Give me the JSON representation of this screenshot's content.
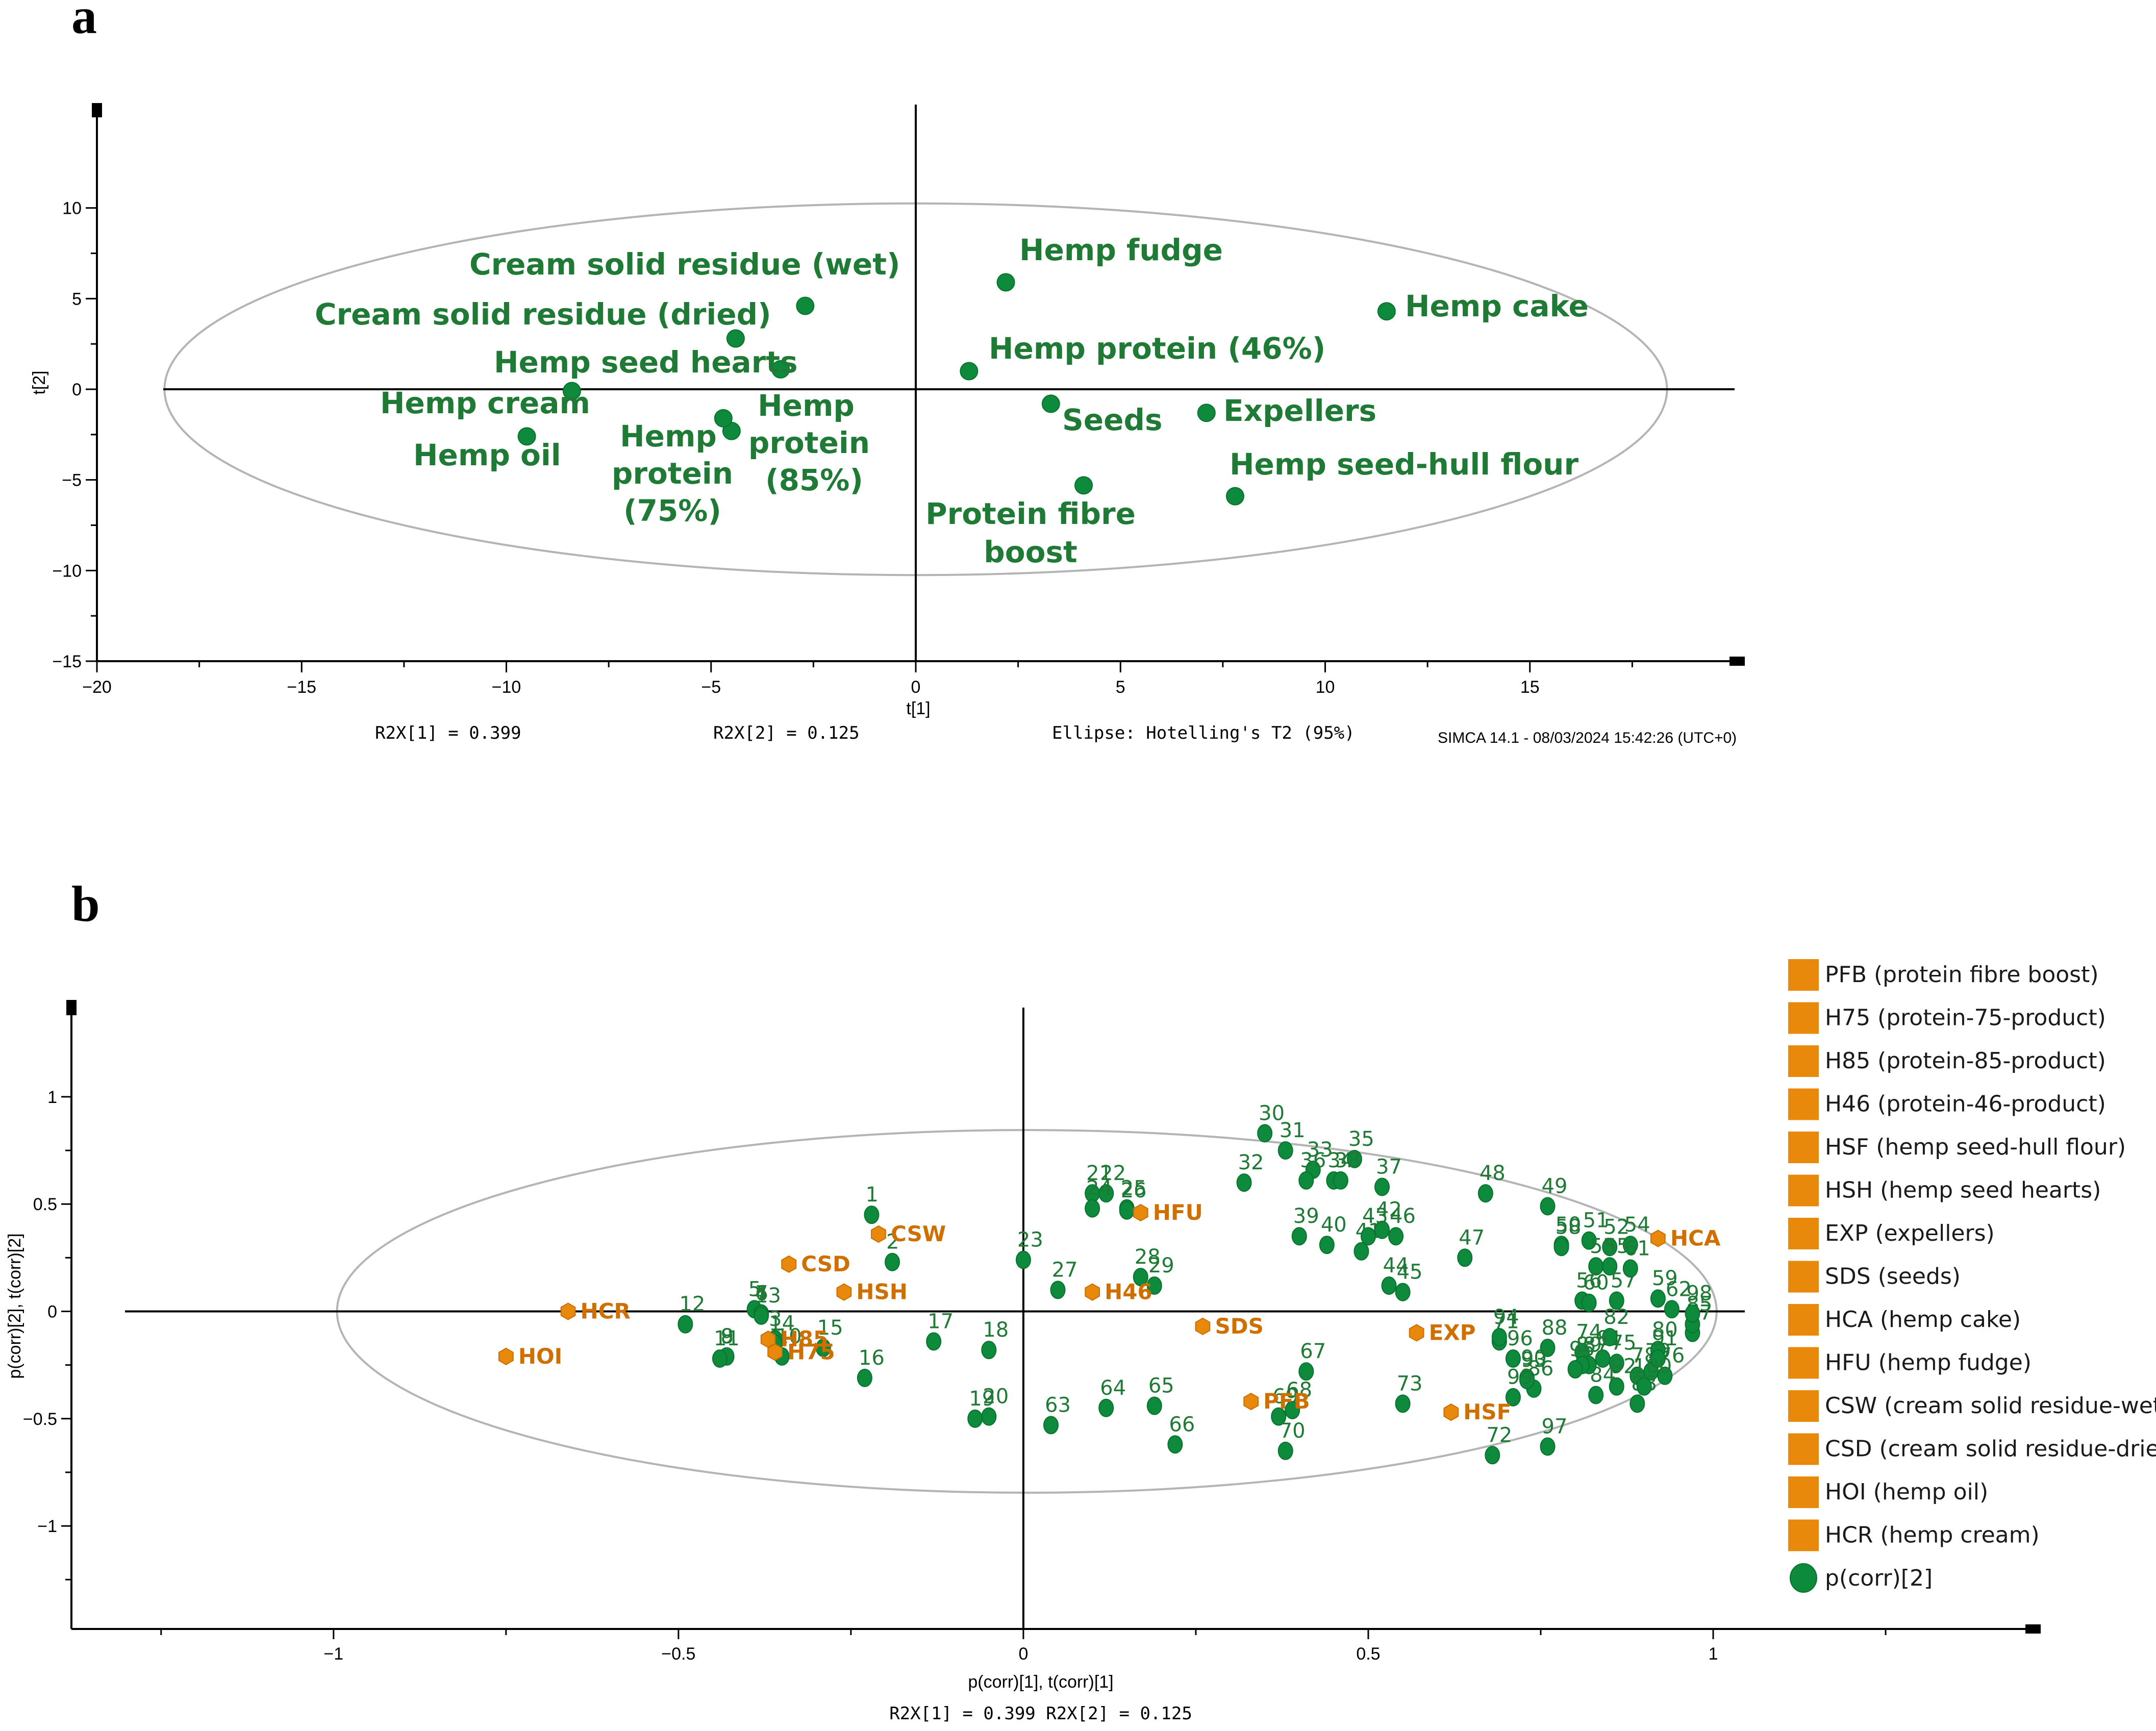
{
  "colors": {
    "green": "#0e8a3c",
    "green_text": "#1f7a35",
    "orange": "#e8890c",
    "orange_text": "#cf6f00",
    "axis": "#000000",
    "ellipse": "#b4b4b4"
  },
  "panel_labels": {
    "a": "a",
    "b": "b"
  },
  "chart_data": [
    {
      "id": "a",
      "type": "scatter",
      "xlabel": "t[1]",
      "ylabel": "t[2]",
      "xlim": [
        -20,
        20
      ],
      "ylim": [
        -15,
        15
      ],
      "xticks": [
        -20,
        -15,
        -10,
        -5,
        0,
        5,
        10,
        15
      ],
      "yticks": [
        10,
        5,
        0,
        -5,
        -10,
        -15
      ],
      "tick_labels_x": [
        "−20",
        "−15",
        "−10",
        "−5",
        "0",
        "5",
        "10",
        "15"
      ],
      "tick_labels_y": [
        "10",
        "5",
        "0",
        "−5",
        "−10",
        "−15"
      ],
      "ellipse": {
        "cx": 0,
        "cy": 0,
        "rx": 18.35,
        "ry": 10.25
      },
      "footer": [
        "R2X[1] = 0.399",
        "R2X[2] = 0.125",
        "Ellipse: Hotelling's T2 (95%)",
        "SIMCA 14.1 - 08/03/2024 15:42:26 (UTC+0)"
      ],
      "points": [
        {
          "x": -2.7,
          "y": 4.6,
          "label": "Cream solid residue (wet)"
        },
        {
          "x": -4.4,
          "y": 2.8,
          "label": "Cream solid residue (dried)"
        },
        {
          "x": -3.3,
          "y": 1.1,
          "label": "Hemp seed hearts"
        },
        {
          "x": -8.4,
          "y": -0.1,
          "label": "Hemp cream"
        },
        {
          "x": -9.5,
          "y": -2.6,
          "label": "Hemp oil"
        },
        {
          "x": -4.5,
          "y": -2.3,
          "label": "Hemp protein (75%)"
        },
        {
          "x": -4.7,
          "y": -1.6,
          "label": "Hemp protein (85%)"
        },
        {
          "x": 2.2,
          "y": 5.9,
          "label": "Hemp fudge"
        },
        {
          "x": 11.5,
          "y": 4.3,
          "label": "Hemp cake"
        },
        {
          "x": 1.3,
          "y": 1.0,
          "label": "Hemp protein (46%)"
        },
        {
          "x": 3.3,
          "y": -0.8,
          "label": "Seeds"
        },
        {
          "x": 7.1,
          "y": -1.3,
          "label": "Expellers"
        },
        {
          "x": 7.8,
          "y": -5.9,
          "label": "Hemp seed-hull flour"
        },
        {
          "x": 4.1,
          "y": -5.3,
          "label": "Protein fibre boost"
        }
      ],
      "point_labels": [
        {
          "text": "Cream solid residue (wet)"
        },
        {
          "text": "Cream solid residue (dried)"
        },
        {
          "text": "Hemp seed hearts"
        },
        {
          "text": "Hemp cream"
        },
        {
          "text": "Hemp oil"
        },
        {
          "text": "Hemp fudge"
        },
        {
          "text": "Hemp cake"
        },
        {
          "text": "Hemp protein (46%)"
        },
        {
          "text": "Seeds"
        },
        {
          "text": "Expellers"
        },
        {
          "text": "Hemp seed-hull flour"
        },
        {
          "text": "Hemp"
        },
        {
          "text": "protein"
        },
        {
          "text": "(75%)"
        },
        {
          "text": "Hemp"
        },
        {
          "text": "protein"
        },
        {
          "text": "(85%)"
        },
        {
          "text": "Protein fibre"
        },
        {
          "text": "boost"
        }
      ]
    },
    {
      "id": "b",
      "type": "scatter",
      "xlabel": "p(corr)[1], t(corr)[1]",
      "ylabel": "p(corr)[2], t(corr)[2]",
      "xlim": [
        -1.38,
        1.46
      ],
      "ylim": [
        -1.48,
        1.38
      ],
      "xticks": [
        -1,
        -0.5,
        0,
        0.5,
        1
      ],
      "yticks": [
        1,
        0.5,
        0,
        -0.5,
        -1
      ],
      "tick_labels_x": [
        "−1",
        "−0.5",
        "0",
        "0.5",
        "1"
      ],
      "tick_labels_y": [
        "1",
        "0.5",
        "0",
        "−0.5",
        "−1"
      ],
      "ellipse": {
        "cx": 0.005,
        "cy": 0.0,
        "rx": 1.0,
        "ry": 0.845
      },
      "footer": [
        "R2X[1] = 0.399 R2X[2] = 0.125"
      ],
      "loadings": [
        {
          "n": "1",
          "x": -0.22,
          "y": 0.45
        },
        {
          "n": "2",
          "x": -0.19,
          "y": 0.23
        },
        {
          "n": "3",
          "x": -0.36,
          "y": -0.13
        },
        {
          "n": "4",
          "x": -0.38,
          "y": -0.01
        },
        {
          "n": "5",
          "x": -0.39,
          "y": 0.01
        },
        {
          "n": "6",
          "x": -0.38,
          "y": -0.01
        },
        {
          "n": "7",
          "x": -0.38,
          "y": -0.01
        },
        {
          "n": "8",
          "x": -0.43,
          "y": -0.21
        },
        {
          "n": "9",
          "x": -0.43,
          "y": -0.21
        },
        {
          "n": "10",
          "x": -0.35,
          "y": -0.21
        },
        {
          "n": "11",
          "x": -0.44,
          "y": -0.22
        },
        {
          "n": "12",
          "x": -0.49,
          "y": -0.06
        },
        {
          "n": "13",
          "x": -0.38,
          "y": -0.02
        },
        {
          "n": "14",
          "x": -0.36,
          "y": -0.15
        },
        {
          "n": "15",
          "x": -0.29,
          "y": -0.17
        },
        {
          "n": "16",
          "x": -0.23,
          "y": -0.31
        },
        {
          "n": "17",
          "x": -0.13,
          "y": -0.14
        },
        {
          "n": "18",
          "x": -0.05,
          "y": -0.18
        },
        {
          "n": "19",
          "x": -0.07,
          "y": -0.5
        },
        {
          "n": "20",
          "x": -0.05,
          "y": -0.49
        },
        {
          "n": "21",
          "x": 0.1,
          "y": 0.55
        },
        {
          "n": "22",
          "x": 0.12,
          "y": 0.55
        },
        {
          "n": "23",
          "x": 0.0,
          "y": 0.24
        },
        {
          "n": "24",
          "x": 0.1,
          "y": 0.48
        },
        {
          "n": "25",
          "x": 0.15,
          "y": 0.48
        },
        {
          "n": "26",
          "x": 0.15,
          "y": 0.47
        },
        {
          "n": "27",
          "x": 0.05,
          "y": 0.1
        },
        {
          "n": "28",
          "x": 0.17,
          "y": 0.16
        },
        {
          "n": "29",
          "x": 0.19,
          "y": 0.12
        },
        {
          "n": "30",
          "x": 0.35,
          "y": 0.83
        },
        {
          "n": "31",
          "x": 0.38,
          "y": 0.75
        },
        {
          "n": "32",
          "x": 0.32,
          "y": 0.6
        },
        {
          "n": "33",
          "x": 0.42,
          "y": 0.66
        },
        {
          "n": "34",
          "x": 0.45,
          "y": 0.61
        },
        {
          "n": "35",
          "x": 0.48,
          "y": 0.71
        },
        {
          "n": "36",
          "x": 0.41,
          "y": 0.61
        },
        {
          "n": "37",
          "x": 0.52,
          "y": 0.58
        },
        {
          "n": "38",
          "x": 0.46,
          "y": 0.61
        },
        {
          "n": "39",
          "x": 0.4,
          "y": 0.35
        },
        {
          "n": "40",
          "x": 0.44,
          "y": 0.31
        },
        {
          "n": "41",
          "x": 0.49,
          "y": 0.28
        },
        {
          "n": "42",
          "x": 0.52,
          "y": 0.38
        },
        {
          "n": "43",
          "x": 0.5,
          "y": 0.35
        },
        {
          "n": "44",
          "x": 0.53,
          "y": 0.12
        },
        {
          "n": "45",
          "x": 0.55,
          "y": 0.09
        },
        {
          "n": "46",
          "x": 0.54,
          "y": 0.35
        },
        {
          "n": "47",
          "x": 0.64,
          "y": 0.25
        },
        {
          "n": "48",
          "x": 0.67,
          "y": 0.55
        },
        {
          "n": "49",
          "x": 0.76,
          "y": 0.49
        },
        {
          "n": "50",
          "x": 0.78,
          "y": 0.31
        },
        {
          "n": "51",
          "x": 0.82,
          "y": 0.33
        },
        {
          "n": "52",
          "x": 0.85,
          "y": 0.3
        },
        {
          "n": "53",
          "x": 0.83,
          "y": 0.21
        },
        {
          "n": "54",
          "x": 0.88,
          "y": 0.31
        },
        {
          "n": "55",
          "x": 0.85,
          "y": 0.21
        },
        {
          "n": "56",
          "x": 0.81,
          "y": 0.05
        },
        {
          "n": "57",
          "x": 0.86,
          "y": 0.05
        },
        {
          "n": "58",
          "x": 0.78,
          "y": 0.3
        },
        {
          "n": "59",
          "x": 0.92,
          "y": 0.06
        },
        {
          "n": "60",
          "x": 0.82,
          "y": 0.04
        },
        {
          "n": "61",
          "x": 0.88,
          "y": 0.2
        },
        {
          "n": "62",
          "x": 0.94,
          "y": 0.01
        },
        {
          "n": "63",
          "x": 0.04,
          "y": -0.53
        },
        {
          "n": "64",
          "x": 0.12,
          "y": -0.45
        },
        {
          "n": "65",
          "x": 0.19,
          "y": -0.44
        },
        {
          "n": "66",
          "x": 0.22,
          "y": -0.62
        },
        {
          "n": "67",
          "x": 0.41,
          "y": -0.28
        },
        {
          "n": "68",
          "x": 0.39,
          "y": -0.46
        },
        {
          "n": "69",
          "x": 0.37,
          "y": -0.49
        },
        {
          "n": "70",
          "x": 0.38,
          "y": -0.65
        },
        {
          "n": "71",
          "x": 0.69,
          "y": -0.14
        },
        {
          "n": "72",
          "x": 0.68,
          "y": -0.67
        },
        {
          "n": "73",
          "x": 0.55,
          "y": -0.43
        },
        {
          "n": "74",
          "x": 0.81,
          "y": -0.19
        },
        {
          "n": "75",
          "x": 0.86,
          "y": -0.24
        },
        {
          "n": "76",
          "x": 0.93,
          "y": -0.3
        },
        {
          "n": "77",
          "x": 0.97,
          "y": -0.1
        },
        {
          "n": "78",
          "x": 0.89,
          "y": -0.3
        },
        {
          "n": "79",
          "x": 0.91,
          "y": -0.28
        },
        {
          "n": "80",
          "x": 0.92,
          "y": -0.18
        },
        {
          "n": "81",
          "x": 0.84,
          "y": -0.22
        },
        {
          "n": "82",
          "x": 0.85,
          "y": -0.12
        },
        {
          "n": "83",
          "x": 0.89,
          "y": -0.43
        },
        {
          "n": "84",
          "x": 0.83,
          "y": -0.39
        },
        {
          "n": "85",
          "x": 0.97,
          "y": -0.06
        },
        {
          "n": "86",
          "x": 0.74,
          "y": -0.36
        },
        {
          "n": "87",
          "x": 0.82,
          "y": -0.25
        },
        {
          "n": "88",
          "x": 0.76,
          "y": -0.17
        },
        {
          "n": "89",
          "x": 0.81,
          "y": -0.25
        },
        {
          "n": "90",
          "x": 0.73,
          "y": -0.31
        },
        {
          "n": "91",
          "x": 0.92,
          "y": -0.22
        },
        {
          "n": "92",
          "x": 0.86,
          "y": -0.35
        },
        {
          "n": "93",
          "x": 0.73,
          "y": -0.32
        },
        {
          "n": "94",
          "x": 0.69,
          "y": -0.12
        },
        {
          "n": "95",
          "x": 0.8,
          "y": -0.27
        },
        {
          "n": "96",
          "x": 0.71,
          "y": -0.22
        },
        {
          "n": "97",
          "x": 0.76,
          "y": -0.63
        },
        {
          "n": "98",
          "x": 0.97,
          "y": -0.01
        },
        {
          "n": "99",
          "x": 0.71,
          "y": -0.4
        },
        {
          "n": "100",
          "x": 0.9,
          "y": -0.35
        }
      ],
      "scores": [
        {
          "code": "CSD",
          "x": -0.34,
          "y": 0.22
        },
        {
          "code": "CSW",
          "x": -0.21,
          "y": 0.36
        },
        {
          "code": "HSH",
          "x": -0.26,
          "y": 0.09
        },
        {
          "code": "HCR",
          "x": -0.66,
          "y": 0.0
        },
        {
          "code": "HOI",
          "x": -0.75,
          "y": -0.21
        },
        {
          "code": "H85",
          "x": -0.37,
          "y": -0.13
        },
        {
          "code": "H75",
          "x": -0.36,
          "y": -0.19
        },
        {
          "code": "HFU",
          "x": 0.17,
          "y": 0.46
        },
        {
          "code": "H46",
          "x": 0.1,
          "y": 0.09
        },
        {
          "code": "SDS",
          "x": 0.26,
          "y": -0.07
        },
        {
          "code": "PFB",
          "x": 0.33,
          "y": -0.42
        },
        {
          "code": "EXP",
          "x": 0.57,
          "y": -0.1
        },
        {
          "code": "HSF",
          "x": 0.62,
          "y": -0.47
        },
        {
          "code": "HCA",
          "x": 0.92,
          "y": 0.34
        }
      ],
      "legend": [
        "PFB (protein fibre boost)",
        "H75 (protein-75-product)",
        "H85 (protein-85-product)",
        "H46 (protein-46-product)",
        "HSF (hemp seed-hull flour)",
        "HSH (hemp seed hearts)",
        "EXP (expellers)",
        "SDS (seeds)",
        "HCA (hemp cake)",
        "HFU (hemp fudge)",
        "CSW (cream solid residue-wet)",
        "CSD (cream solid residue-dried)",
        "HOI (hemp oil)",
        "HCR (hemp cream)",
        "p(corr)[2]"
      ]
    }
  ]
}
